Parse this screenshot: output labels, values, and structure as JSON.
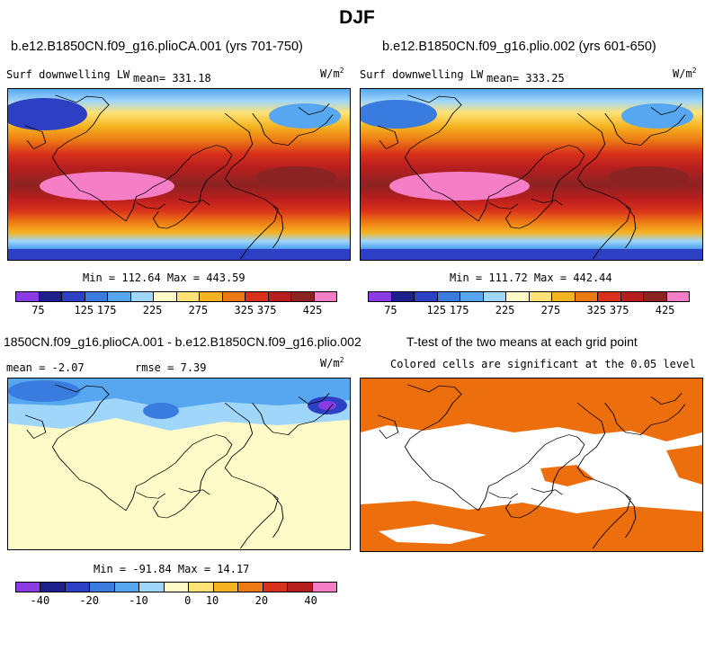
{
  "title": "DJF",
  "panels": {
    "top_left": {
      "case": "b.e12.B1850CN.f09_g16.plioCA.001 (yrs 701-750)",
      "variable": "Surf downwelling LW",
      "mean_label": "mean=",
      "mean_value": "331.18",
      "units": "W/m",
      "units_exp": "2",
      "minmax": "Min = 112.64 Max = 443.59"
    },
    "top_right": {
      "case": "b.e12.B1850CN.f09_g16.plio.002 (yrs 601-650)",
      "variable": "Surf downwelling LW",
      "mean_label": "mean=",
      "mean_value": "333.25",
      "units": "W/m",
      "units_exp": "2",
      "minmax": "Min = 111.72 Max = 442.44"
    },
    "bottom_left": {
      "case": "1850CN.f09_g16.plioCA.001 - b.e12.B1850CN.f09_g16.plio.002",
      "mean_label": "mean =",
      "mean_value": "-2.07",
      "rmse_label": "rmse =",
      "rmse_value": "7.39",
      "units": "W/m",
      "units_exp": "2",
      "minmax": "Min = -91.84 Max =  14.17"
    },
    "bottom_right": {
      "title": "T-test of the two means at each grid point",
      "subtitle": "Colored cells are significant at the 0.05 level"
    }
  },
  "colorbar_abs": {
    "colors": [
      "#8a3be3",
      "#1e1e8c",
      "#2d3fc2",
      "#3a7be0",
      "#57a7f0",
      "#9fd6fa",
      "#fffbc8",
      "#ffe275",
      "#f5b321",
      "#ec7a14",
      "#d8301b",
      "#b71e1e",
      "#8c2323",
      "#f57ec7"
    ],
    "ticks": [
      "75",
      "125",
      "175",
      "225",
      "275",
      "325",
      "375",
      "425"
    ]
  },
  "colorbar_diff": {
    "colors": [
      "#8a3be3",
      "#1e1e8c",
      "#2d3fc2",
      "#3a7be0",
      "#57a7f0",
      "#9fd6fa",
      "#fffbc8",
      "#ffe275",
      "#f5b321",
      "#ec7a14",
      "#d8301b",
      "#b71e1e",
      "#f57ec7"
    ],
    "ticks": [
      "-40",
      "-20",
      "-10",
      "0",
      "10",
      "20",
      "40"
    ]
  },
  "chart_data": [
    {
      "type": "heatmap",
      "title": "b.e12.B1850CN.f09_g16.plioCA.001 (yrs 701-750)",
      "variable": "Surf downwelling LW",
      "units": "W/m2",
      "mean": 331.18,
      "min": 112.64,
      "max": 443.59,
      "contour_levels": [
        75,
        100,
        125,
        150,
        175,
        200,
        225,
        250,
        275,
        300,
        325,
        350,
        375,
        400,
        425
      ]
    },
    {
      "type": "heatmap",
      "title": "b.e12.B1850CN.f09_g16.plio.002 (yrs 601-650)",
      "variable": "Surf downwelling LW",
      "units": "W/m2",
      "mean": 333.25,
      "min": 111.72,
      "max": 442.44,
      "contour_levels": [
        75,
        100,
        125,
        150,
        175,
        200,
        225,
        250,
        275,
        300,
        325,
        350,
        375,
        400,
        425
      ]
    },
    {
      "type": "heatmap",
      "title": "1850CN.f09_g16.plioCA.001 - b.e12.B1850CN.f09_g16.plio.002",
      "units": "W/m2",
      "mean": -2.07,
      "rmse": 7.39,
      "min": -91.84,
      "max": 14.17,
      "contour_levels": [
        -50,
        -40,
        -30,
        -20,
        -15,
        -10,
        -5,
        0,
        5,
        10,
        15,
        20,
        30,
        40,
        50
      ]
    },
    {
      "type": "heatmap",
      "title": "T-test of the two means at each grid point",
      "subtitle": "Colored cells are significant at the 0.05 level",
      "significance_level": 0.05
    }
  ]
}
